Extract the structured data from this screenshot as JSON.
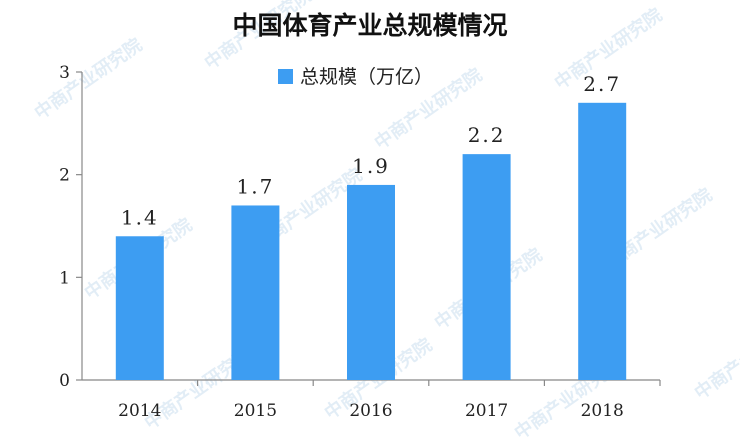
{
  "watermark": "中商产业研究院",
  "chart_data": {
    "type": "bar",
    "title": "中国体育产业总规模情况",
    "categories": [
      "2014",
      "2015",
      "2016",
      "2017",
      "2018"
    ],
    "series": [
      {
        "name": "总规模（万亿）",
        "values": [
          1.4,
          1.7,
          1.9,
          2.2,
          2.7
        ]
      }
    ],
    "data_labels": [
      "1.4",
      "1.7",
      "1.9",
      "2.2",
      "2.7"
    ],
    "yticks": [
      0,
      1,
      2,
      3
    ],
    "ylim": [
      0,
      3
    ],
    "xlabel": "",
    "ylabel": "",
    "grid": false,
    "legend_position": "top-center",
    "colors": {
      "bar": "#3d9df2",
      "axis": "#888888"
    }
  }
}
